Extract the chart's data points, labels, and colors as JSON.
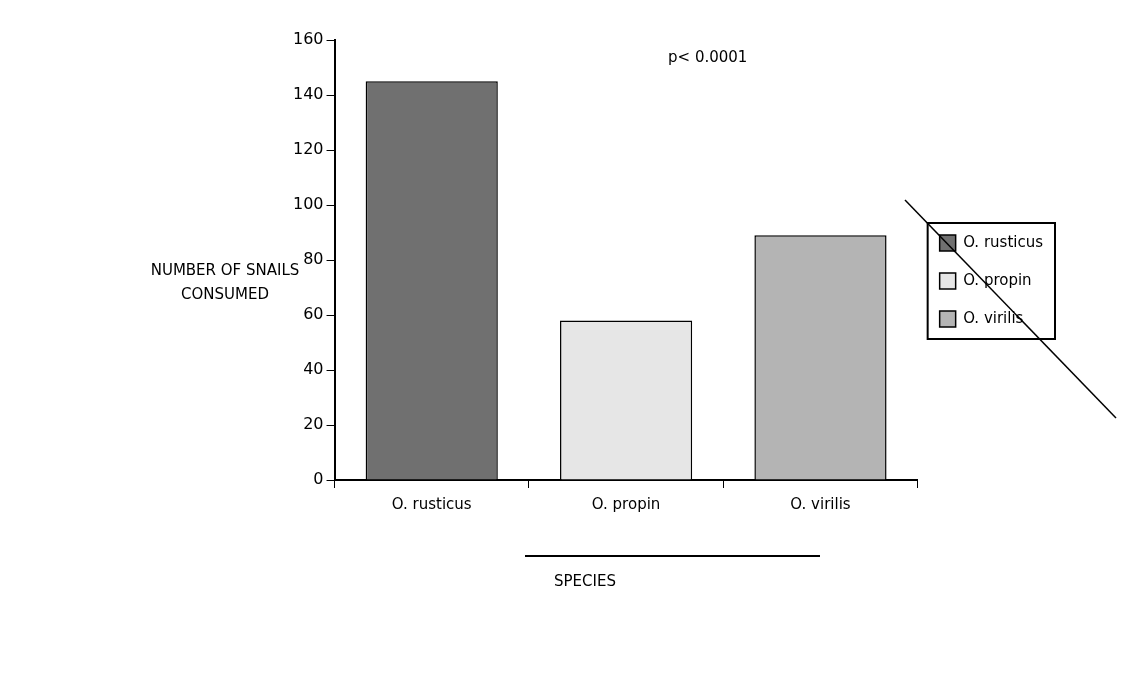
{
  "chart_data": {
    "type": "bar",
    "categories": [
      "O. rusticus",
      "O. propin",
      "O. virilis"
    ],
    "series": [
      {
        "name": "O. rusticus",
        "color": "#707070",
        "values": [
          145,
          null,
          null
        ]
      },
      {
        "name": "O. propin",
        "color": "#e6e6e6",
        "values": [
          null,
          58,
          null
        ]
      },
      {
        "name": "O. virilis",
        "color": "#b4b4b4",
        "values": [
          null,
          null,
          89
        ]
      }
    ],
    "ylabel": "NUMBER OF SNAILS CONSUMED",
    "xlabel": "SPECIES",
    "annotations": [
      "p< 0.0001"
    ],
    "ylim": [
      0,
      160
    ],
    "yticks": [
      0,
      20,
      40,
      60,
      80,
      100,
      120,
      140,
      160
    ],
    "grid": false,
    "legend": "right"
  }
}
